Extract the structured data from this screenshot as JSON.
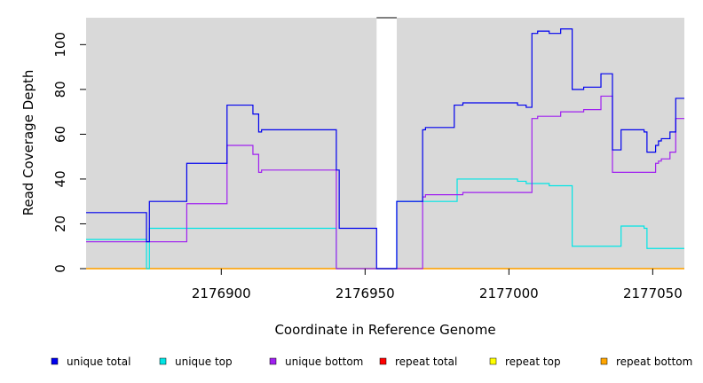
{
  "chart_data": {
    "type": "line",
    "step": true,
    "xlabel": "Coordinate in Reference Genome",
    "ylabel": "Read Coverage Depth",
    "xlim": [
      2176853,
      2177061
    ],
    "ylim": [
      0,
      112
    ],
    "x_ticks": [
      2176900,
      2176950,
      2177000,
      2177050
    ],
    "x_tick_labels": [
      "2176900",
      "2176950",
      "2177000",
      "2177050"
    ],
    "y_ticks": [
      0,
      20,
      40,
      60,
      80,
      100
    ],
    "y_tick_labels": [
      "0",
      "20",
      "40",
      "60",
      "80",
      "100"
    ],
    "background": "#d9d9d9",
    "gap_region": [
      2176954,
      2176961
    ],
    "grid": false,
    "legend_position": "bottom",
    "series": [
      {
        "name": "unique total",
        "color": "#0000ee",
        "points": [
          [
            2176853,
            25
          ],
          [
            2176874,
            12
          ],
          [
            2176875,
            30
          ],
          [
            2176888,
            47
          ],
          [
            2176902,
            73
          ],
          [
            2176911,
            69
          ],
          [
            2176913,
            61
          ],
          [
            2176914,
            62
          ],
          [
            2176940,
            44
          ],
          [
            2176941,
            18
          ],
          [
            2176954,
            0
          ],
          [
            2176961,
            30
          ],
          [
            2176970,
            62
          ],
          [
            2176971,
            63
          ],
          [
            2176981,
            73
          ],
          [
            2176984,
            74
          ],
          [
            2177003,
            73
          ],
          [
            2177006,
            72
          ],
          [
            2177008,
            105
          ],
          [
            2177010,
            106
          ],
          [
            2177014,
            105
          ],
          [
            2177018,
            107
          ],
          [
            2177022,
            80
          ],
          [
            2177026,
            81
          ],
          [
            2177032,
            87
          ],
          [
            2177036,
            53
          ],
          [
            2177039,
            62
          ],
          [
            2177047,
            61
          ],
          [
            2177048,
            52
          ],
          [
            2177051,
            55
          ],
          [
            2177052,
            57
          ],
          [
            2177053,
            58
          ],
          [
            2177056,
            61
          ],
          [
            2177058,
            76
          ],
          [
            2177061,
            76
          ]
        ]
      },
      {
        "name": "unique top",
        "color": "#00e5e5",
        "points": [
          [
            2176853,
            13
          ],
          [
            2176874,
            0
          ],
          [
            2176875,
            18
          ],
          [
            2176940,
            0
          ],
          [
            2176961,
            30
          ],
          [
            2176982,
            40
          ],
          [
            2177003,
            39
          ],
          [
            2177006,
            38
          ],
          [
            2177014,
            37
          ],
          [
            2177022,
            10
          ],
          [
            2177039,
            19
          ],
          [
            2177047,
            18
          ],
          [
            2177048,
            9
          ],
          [
            2177061,
            9
          ]
        ]
      },
      {
        "name": "unique bottom",
        "color": "#a020f0",
        "points": [
          [
            2176853,
            12
          ],
          [
            2176888,
            29
          ],
          [
            2176902,
            55
          ],
          [
            2176911,
            51
          ],
          [
            2176913,
            43
          ],
          [
            2176914,
            44
          ],
          [
            2176940,
            0
          ],
          [
            2176970,
            32
          ],
          [
            2176971,
            33
          ],
          [
            2176984,
            34
          ],
          [
            2177008,
            67
          ],
          [
            2177010,
            68
          ],
          [
            2177018,
            70
          ],
          [
            2177026,
            71
          ],
          [
            2177032,
            77
          ],
          [
            2177036,
            43
          ],
          [
            2177051,
            47
          ],
          [
            2177052,
            48
          ],
          [
            2177053,
            49
          ],
          [
            2177056,
            52
          ],
          [
            2177058,
            67
          ],
          [
            2177061,
            67
          ]
        ]
      },
      {
        "name": "repeat total",
        "color": "#ff0000",
        "points": [
          [
            2176853,
            0
          ],
          [
            2177061,
            0
          ]
        ]
      },
      {
        "name": "repeat top",
        "color": "#ffff00",
        "points": [
          [
            2176853,
            0
          ],
          [
            2177061,
            0
          ]
        ]
      },
      {
        "name": "repeat bottom",
        "color": "#ffa500",
        "points": [
          [
            2176853,
            0
          ],
          [
            2177061,
            0
          ]
        ]
      }
    ]
  }
}
